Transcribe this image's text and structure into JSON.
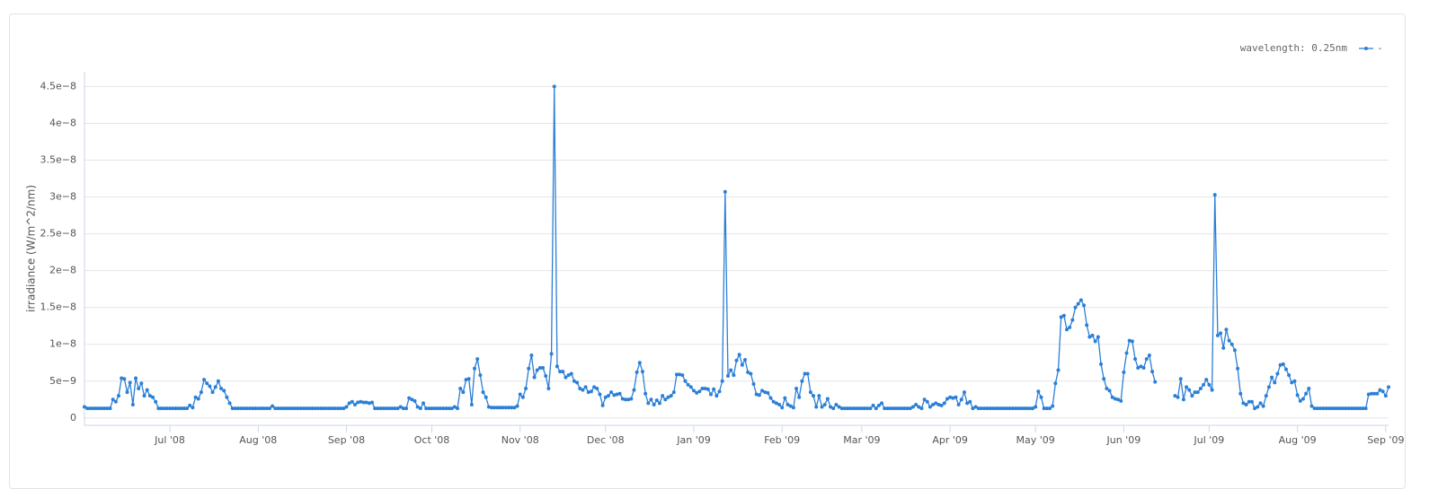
{
  "chart_data": {
    "type": "line",
    "y_label": "irradiance (W/m^2/nm)",
    "legend_title": "wavelength: 0.25nm",
    "legend": "top-right",
    "grid": true,
    "xlim": [
      0,
      458
    ],
    "xticks": [
      {
        "value": 30,
        "label": "Jul '08"
      },
      {
        "value": 61,
        "label": "Aug '08"
      },
      {
        "value": 92,
        "label": "Sep '08"
      },
      {
        "value": 122,
        "label": "Oct '08"
      },
      {
        "value": 153,
        "label": "Nov '08"
      },
      {
        "value": 183,
        "label": "Dec '08"
      },
      {
        "value": 214,
        "label": "Jan '09"
      },
      {
        "value": 245,
        "label": "Feb '09"
      },
      {
        "value": 273,
        "label": "Mar '09"
      },
      {
        "value": 304,
        "label": "Apr '09"
      },
      {
        "value": 334,
        "label": "May '09"
      },
      {
        "value": 365,
        "label": "Jun '09"
      },
      {
        "value": 395,
        "label": "Jul '09"
      },
      {
        "value": 426,
        "label": "Aug '09"
      },
      {
        "value": 457,
        "label": "Sep '09"
      }
    ],
    "ylim": [
      -1e-09,
      4.7e-08
    ],
    "yticks": [
      0,
      {
        "value": 5e-09,
        "label": "5e−9"
      },
      {
        "value": 1e-08,
        "label": "1e−8"
      },
      {
        "value": 1.5e-08,
        "label": "1.5e−8"
      },
      {
        "value": 2e-08,
        "label": "2e−8"
      },
      {
        "value": 2.5e-08,
        "label": "2.5e−8"
      },
      {
        "value": 3e-08,
        "label": "3e−8"
      },
      {
        "value": 3.5e-08,
        "label": "3.5e−8"
      },
      {
        "value": 4e-08,
        "label": "4e−8"
      },
      {
        "value": 4.5e-08,
        "label": "4.5e−8"
      }
    ],
    "series": [
      {
        "name": "-",
        "color": "#2b7fd6",
        "values": [
          1.5e-09,
          1.3e-09,
          1.3e-09,
          1.3e-09,
          1.3e-09,
          1.3e-09,
          1.3e-09,
          1.3e-09,
          1.3e-09,
          1.3e-09,
          2.5e-09,
          2.2e-09,
          3e-09,
          5.4e-09,
          5.3e-09,
          3.5e-09,
          4.8e-09,
          1.8e-09,
          5.4e-09,
          4e-09,
          4.7e-09,
          3e-09,
          3.8e-09,
          3e-09,
          2.8e-09,
          2.2e-09,
          1.3e-09,
          1.3e-09,
          1.3e-09,
          1.3e-09,
          1.3e-09,
          1.3e-09,
          1.3e-09,
          1.3e-09,
          1.3e-09,
          1.3e-09,
          1.3e-09,
          1.7e-09,
          1.4e-09,
          2.8e-09,
          2.6e-09,
          3.5e-09,
          5.2e-09,
          4.7e-09,
          4.3e-09,
          3.5e-09,
          4.2e-09,
          5e-09,
          4e-09,
          3.7e-09,
          2.8e-09,
          2e-09,
          1.3e-09,
          1.3e-09,
          1.3e-09,
          1.3e-09,
          1.3e-09,
          1.3e-09,
          1.3e-09,
          1.3e-09,
          1.3e-09,
          1.3e-09,
          1.3e-09,
          1.3e-09,
          1.3e-09,
          1.3e-09,
          1.6e-09,
          1.3e-09,
          1.3e-09,
          1.3e-09,
          1.3e-09,
          1.3e-09,
          1.3e-09,
          1.3e-09,
          1.3e-09,
          1.3e-09,
          1.3e-09,
          1.3e-09,
          1.3e-09,
          1.3e-09,
          1.3e-09,
          1.3e-09,
          1.3e-09,
          1.3e-09,
          1.3e-09,
          1.3e-09,
          1.3e-09,
          1.3e-09,
          1.3e-09,
          1.3e-09,
          1.3e-09,
          1.3e-09,
          1.5e-09,
          2e-09,
          2.2e-09,
          1.8e-09,
          2.1e-09,
          2.2e-09,
          2.1e-09,
          2.1e-09,
          2e-09,
          2.1e-09,
          1.3e-09,
          1.3e-09,
          1.3e-09,
          1.3e-09,
          1.3e-09,
          1.3e-09,
          1.3e-09,
          1.3e-09,
          1.3e-09,
          1.5e-09,
          1.3e-09,
          1.3e-09,
          2.7e-09,
          2.5e-09,
          2.3e-09,
          1.5e-09,
          1.3e-09,
          2e-09,
          1.3e-09,
          1.3e-09,
          1.3e-09,
          1.3e-09,
          1.3e-09,
          1.3e-09,
          1.3e-09,
          1.3e-09,
          1.3e-09,
          1.3e-09,
          1.5e-09,
          1.3e-09,
          4e-09,
          3.5e-09,
          5.2e-09,
          5.3e-09,
          1.8e-09,
          6.7e-09,
          8e-09,
          5.8e-09,
          3.5e-09,
          2.8e-09,
          1.5e-09,
          1.4e-09,
          1.4e-09,
          1.4e-09,
          1.4e-09,
          1.4e-09,
          1.4e-09,
          1.4e-09,
          1.4e-09,
          1.4e-09,
          1.6e-09,
          3.2e-09,
          2.8e-09,
          4e-09,
          6.7e-09,
          8.5e-09,
          5.5e-09,
          6.5e-09,
          6.8e-09,
          6.8e-09,
          5.7e-09,
          4e-09,
          8.7e-09,
          4.5e-08,
          7e-09,
          6.3e-09,
          6.3e-09,
          5.5e-09,
          5.8e-09,
          6e-09,
          5e-09,
          4.8e-09,
          4e-09,
          3.8e-09,
          4.2e-09,
          3.5e-09,
          3.6e-09,
          4.2e-09,
          4e-09,
          3.2e-09,
          1.7e-09,
          2.8e-09,
          3e-09,
          3.5e-09,
          3.1e-09,
          3.2e-09,
          3.3e-09,
          2.6e-09,
          2.5e-09,
          2.5e-09,
          2.6e-09,
          3.8e-09,
          6.2e-09,
          7.5e-09,
          6.3e-09,
          3.3e-09,
          2e-09,
          2.5e-09,
          1.8e-09,
          2.4e-09,
          2e-09,
          3e-09,
          2.5e-09,
          2.8e-09,
          3e-09,
          3.5e-09,
          5.9e-09,
          5.9e-09,
          5.8e-09,
          5e-09,
          4.5e-09,
          4.2e-09,
          3.7e-09,
          3.4e-09,
          3.6e-09,
          4e-09,
          4e-09,
          3.9e-09,
          3.2e-09,
          3.9e-09,
          3e-09,
          3.6e-09,
          5e-09,
          3.07e-08,
          5.7e-09,
          6.5e-09,
          5.8e-09,
          7.8e-09,
          8.6e-09,
          7.2e-09,
          7.9e-09,
          6.2e-09,
          6e-09,
          4.6e-09,
          3.2e-09,
          3.1e-09,
          3.7e-09,
          3.5e-09,
          3.4e-09,
          2.7e-09,
          2.2e-09,
          2e-09,
          1.8e-09,
          1.4e-09,
          2.7e-09,
          1.8e-09,
          1.6e-09,
          1.4e-09,
          4e-09,
          2.8e-09,
          5e-09,
          6e-09,
          6e-09,
          3.5e-09,
          3e-09,
          1.5e-09,
          3e-09,
          1.5e-09,
          1.8e-09,
          2.6e-09,
          1.5e-09,
          1.3e-09,
          1.8e-09,
          1.5e-09,
          1.3e-09,
          1.3e-09,
          1.3e-09,
          1.3e-09,
          1.3e-09,
          1.3e-09,
          1.3e-09,
          1.3e-09,
          1.3e-09,
          1.3e-09,
          1.3e-09,
          1.7e-09,
          1.3e-09,
          1.7e-09,
          2e-09,
          1.3e-09,
          1.3e-09,
          1.3e-09,
          1.3e-09,
          1.3e-09,
          1.3e-09,
          1.3e-09,
          1.3e-09,
          1.3e-09,
          1.3e-09,
          1.5e-09,
          1.8e-09,
          1.5e-09,
          1.3e-09,
          2.5e-09,
          2.2e-09,
          1.5e-09,
          1.8e-09,
          2e-09,
          1.8e-09,
          1.7e-09,
          2e-09,
          2.6e-09,
          2.8e-09,
          2.7e-09,
          2.8e-09,
          1.8e-09,
          2.5e-09,
          3.5e-09,
          2e-09,
          2.2e-09,
          1.3e-09,
          1.5e-09,
          1.3e-09,
          1.3e-09,
          1.3e-09,
          1.3e-09,
          1.3e-09,
          1.3e-09,
          1.3e-09,
          1.3e-09,
          1.3e-09,
          1.3e-09,
          1.3e-09,
          1.3e-09,
          1.3e-09,
          1.3e-09,
          1.3e-09,
          1.3e-09,
          1.3e-09,
          1.3e-09,
          1.3e-09,
          1.3e-09,
          1.5e-09,
          3.6e-09,
          2.8e-09,
          1.3e-09,
          1.3e-09,
          1.3e-09,
          1.6e-09,
          4.7e-09,
          6.5e-09,
          1.37e-08,
          1.39e-08,
          1.2e-08,
          1.23e-08,
          1.33e-08,
          1.5e-08,
          1.55e-08,
          1.6e-08,
          1.53e-08,
          1.26e-08,
          1.1e-08,
          1.12e-08,
          1.04e-08,
          1.1e-08,
          7.3e-09,
          5.3e-09,
          4e-09,
          3.7e-09,
          2.8e-09,
          2.6e-09,
          2.5e-09,
          2.3e-09,
          6.2e-09,
          8.8e-09,
          1.05e-08,
          1.04e-08,
          8e-09,
          6.8e-09,
          7e-09,
          6.8e-09,
          8e-09,
          8.5e-09,
          6.3e-09,
          4.9e-09,
          null,
          null,
          null,
          null,
          null,
          null,
          3e-09,
          2.8e-09,
          5.3e-09,
          2.5e-09,
          4.2e-09,
          3.8e-09,
          3e-09,
          3.5e-09,
          3.5e-09,
          4e-09,
          4.5e-09,
          5.2e-09,
          4.5e-09,
          3.8e-09,
          3.03e-08,
          1.12e-08,
          1.15e-08,
          9.5e-09,
          1.2e-08,
          1.05e-08,
          1e-08,
          9.2e-09,
          6.7e-09,
          3.3e-09,
          2e-09,
          1.8e-09,
          2.2e-09,
          2.2e-09,
          1.3e-09,
          1.5e-09,
          2e-09,
          1.6e-09,
          3e-09,
          4.2e-09,
          5.5e-09,
          4.8e-09,
          6e-09,
          7.2e-09,
          7.3e-09,
          6.6e-09,
          5.8e-09,
          4.8e-09,
          5e-09,
          3.1e-09,
          2.3e-09,
          2.6e-09,
          3.3e-09,
          4e-09,
          1.6e-09,
          1.3e-09,
          1.3e-09,
          1.3e-09,
          1.3e-09,
          1.3e-09,
          1.3e-09,
          1.3e-09,
          1.3e-09,
          1.3e-09,
          1.3e-09,
          1.3e-09,
          1.3e-09,
          1.3e-09,
          1.3e-09,
          1.3e-09,
          1.3e-09,
          1.3e-09,
          1.3e-09,
          1.3e-09,
          3.2e-09,
          3.3e-09,
          3.3e-09,
          3.3e-09,
          3.8e-09,
          3.6e-09,
          3e-09,
          4.2e-09
        ]
      }
    ]
  }
}
